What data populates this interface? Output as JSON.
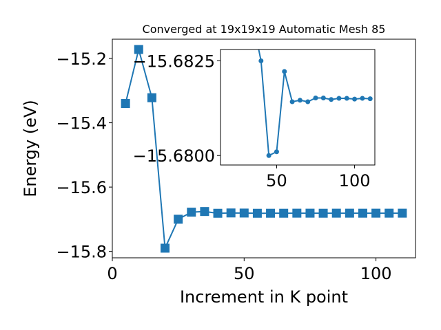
{
  "chart_data": [
    {
      "type": "line",
      "title": "Converged at 19x19x19 Automatic Mesh 85",
      "xlabel": "Increment in K point",
      "ylabel": "Energy (eV)",
      "xlim": [
        0,
        115
      ],
      "ylim": [
        -15.82,
        -15.14
      ],
      "xticks": [
        0,
        50,
        100
      ],
      "xtick_labels": [
        "0",
        "50",
        "100"
      ],
      "yticks": [
        -15.2,
        -15.4,
        -15.6,
        -15.8
      ],
      "ytick_labels": [
        "−15.2",
        "−15.4",
        "−15.6",
        "−15.8"
      ],
      "grid": false,
      "marker": "square",
      "color": "#1f77b4",
      "series": [
        {
          "x": [
            5,
            10,
            15,
            20,
            25,
            30,
            35,
            40,
            45,
            50,
            55,
            60,
            65,
            70,
            75,
            80,
            85,
            90,
            95,
            100,
            105,
            110
          ],
          "y": [
            -15.34,
            -15.172,
            -15.322,
            -15.79,
            -15.7,
            -15.678,
            -15.676,
            -15.6815,
            -15.6805,
            -15.6808,
            -15.6815,
            -15.6814,
            -15.6814,
            -15.6812,
            -15.6812,
            -15.6814,
            -15.6812,
            -15.6812,
            -15.6813,
            -15.6812,
            -15.6812,
            -15.6812
          ]
        }
      ]
    },
    {
      "type": "line",
      "title": "",
      "xlabel": "",
      "ylabel": "",
      "xlim": [
        14,
        113
      ],
      "ylim": [
        -15.67975,
        -15.6828
      ],
      "xticks": [
        50,
        100
      ],
      "xtick_labels": [
        "50",
        "100"
      ],
      "yticks": [
        -15.6825,
        -15.68
      ],
      "ytick_labels": [
        "−15.6825",
        "−15.6800"
      ],
      "grid": false,
      "marker": "circle",
      "color": "#1f77b4",
      "series": [
        {
          "x": [
            35,
            40,
            45,
            50,
            55,
            60,
            65,
            70,
            75,
            80,
            85,
            90,
            95,
            100,
            105,
            110
          ],
          "y": [
            -15.6835,
            -15.6825,
            -15.68,
            -15.6801,
            -15.68222,
            -15.68142,
            -15.68146,
            -15.68142,
            -15.68152,
            -15.68152,
            -15.68148,
            -15.68151,
            -15.68151,
            -15.68149,
            -15.68151,
            -15.6815
          ]
        }
      ]
    }
  ]
}
